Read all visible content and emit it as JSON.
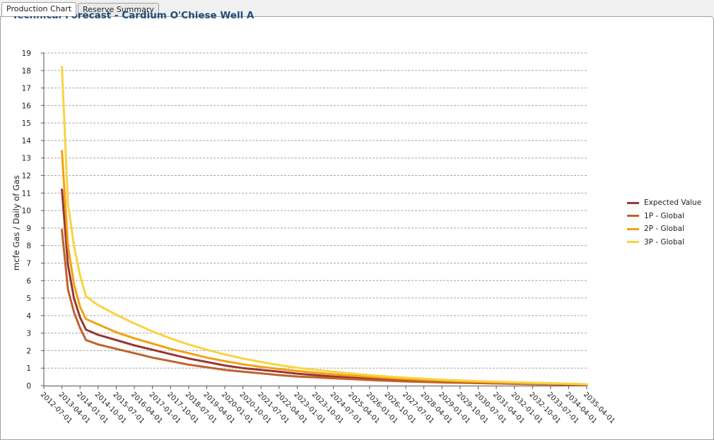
{
  "tabs": [
    {
      "label": "Production Chart",
      "active": true
    },
    {
      "label": "Reserve Summary",
      "active": false
    }
  ],
  "chart_data": {
    "type": "line",
    "title": "Technical Forecast - Cardium O'Chiese Well A",
    "xlabel": "",
    "ylabel": "mcfe Gas / Daily of Gas",
    "ylim": [
      0,
      19
    ],
    "yticks": [
      0,
      1,
      2,
      3,
      4,
      5,
      6,
      7,
      8,
      9,
      10,
      11,
      12,
      13,
      14,
      15,
      16,
      17,
      18,
      19
    ],
    "grid": true,
    "legend_position": "right",
    "x_tick_labels": [
      "2012-07-01",
      "2013-04-01",
      "2014-01-01",
      "2014-10-01",
      "2015-07-01",
      "2016-04-01",
      "2017-01-01",
      "2017-10-01",
      "2018-07-01",
      "2019-04-01",
      "2020-01-01",
      "2020-10-01",
      "2021-07-01",
      "2022-04-01",
      "2023-01-01",
      "2023-10-01",
      "2024-07-01",
      "2025-04-01",
      "2026-01-01",
      "2026-10-01",
      "2027-07-01",
      "2028-04-01",
      "2029-01-01",
      "2029-10-01",
      "2030-07-01",
      "2031-04-01",
      "2032-01-01",
      "2032-10-01",
      "2033-07-01",
      "2034-04-01",
      "2035-04-01"
    ],
    "x": [
      "2013-04-01",
      "2013-07-01",
      "2013-10-01",
      "2014-01-01",
      "2014-04-01",
      "2014-10-01",
      "2015-07-01",
      "2016-04-01",
      "2017-01-01",
      "2017-10-01",
      "2018-07-01",
      "2019-04-01",
      "2020-01-01",
      "2020-10-01",
      "2021-07-01",
      "2022-04-01",
      "2023-01-01",
      "2023-10-01",
      "2024-07-01",
      "2025-04-01",
      "2026-01-01",
      "2026-10-01",
      "2027-07-01",
      "2028-04-01",
      "2029-01-01",
      "2029-10-01",
      "2030-07-01",
      "2031-04-01",
      "2032-01-01",
      "2032-10-01",
      "2033-07-01",
      "2034-04-01",
      "2035-04-01"
    ],
    "series": [
      {
        "name": "Expected Value",
        "color": "#953735",
        "values": [
          11.2,
          6.9,
          5.0,
          3.9,
          3.2,
          2.9,
          2.6,
          2.3,
          2.05,
          1.8,
          1.55,
          1.35,
          1.15,
          1.0,
          0.9,
          0.8,
          0.68,
          0.6,
          0.52,
          0.45,
          0.39,
          0.34,
          0.3,
          0.26,
          0.22,
          0.19,
          0.17,
          0.14,
          0.12,
          0.1,
          0.09,
          0.07,
          0.05
        ]
      },
      {
        "name": "1P - Global",
        "color": "#c0622a",
        "values": [
          8.9,
          5.5,
          4.2,
          3.3,
          2.6,
          2.35,
          2.1,
          1.85,
          1.6,
          1.4,
          1.2,
          1.05,
          0.9,
          0.8,
          0.7,
          0.6,
          0.52,
          0.47,
          0.42,
          0.37,
          0.32,
          0.28,
          0.24,
          0.21,
          0.18,
          0.16,
          0.14,
          0.12,
          0.1,
          0.08,
          0.07,
          0.05,
          0.03
        ]
      },
      {
        "name": "2P - Global",
        "color": "#f2a10f",
        "values": [
          13.4,
          8.0,
          5.8,
          4.5,
          3.8,
          3.5,
          3.05,
          2.7,
          2.4,
          2.1,
          1.85,
          1.6,
          1.4,
          1.22,
          1.07,
          0.95,
          0.83,
          0.74,
          0.65,
          0.57,
          0.5,
          0.44,
          0.38,
          0.33,
          0.29,
          0.25,
          0.22,
          0.19,
          0.17,
          0.14,
          0.12,
          0.1,
          0.07
        ]
      },
      {
        "name": "3P - Global",
        "color": "#f9d342",
        "values": [
          18.2,
          10.4,
          8.0,
          6.3,
          5.1,
          4.6,
          4.05,
          3.55,
          3.1,
          2.7,
          2.35,
          2.05,
          1.78,
          1.55,
          1.35,
          1.17,
          1.02,
          0.9,
          0.79,
          0.69,
          0.6,
          0.52,
          0.45,
          0.39,
          0.34,
          0.3,
          0.26,
          0.22,
          0.19,
          0.16,
          0.14,
          0.11,
          0.08
        ]
      }
    ]
  }
}
